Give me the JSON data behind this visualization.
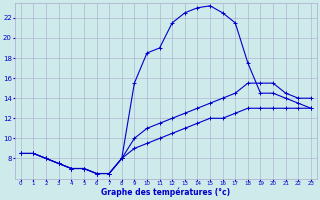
{
  "xlabel": "Graphe des températures (°c)",
  "bg_color": "#ceeaea",
  "grid_color": "#aaaacc",
  "line_color": "#0000cc",
  "xlim": [
    -0.5,
    23.5
  ],
  "ylim": [
    6,
    23.5
  ],
  "xticks": [
    0,
    1,
    2,
    3,
    4,
    5,
    6,
    7,
    8,
    9,
    10,
    11,
    12,
    13,
    14,
    15,
    16,
    17,
    18,
    19,
    20,
    21,
    22,
    23
  ],
  "yticks": [
    8,
    10,
    12,
    14,
    16,
    18,
    20,
    22
  ],
  "ytick_labels": [
    "8",
    "10",
    "12",
    "14",
    "16",
    "18",
    "20",
    "22"
  ],
  "curve1_x": [
    0,
    1,
    2,
    3,
    4,
    5,
    6,
    7,
    8,
    9,
    10,
    11,
    12,
    13,
    14,
    15,
    16,
    17,
    18,
    19,
    20,
    21,
    22,
    23
  ],
  "curve1_y": [
    8.5,
    8.5,
    8.0,
    7.5,
    7.0,
    7.0,
    6.5,
    6.5,
    8.0,
    15.5,
    18.5,
    19.0,
    21.5,
    22.5,
    23.0,
    23.2,
    22.5,
    21.5,
    17.5,
    14.5,
    14.5,
    14.0,
    13.5,
    13.0
  ],
  "curve2_x": [
    0,
    1,
    2,
    3,
    4,
    5,
    6,
    7,
    8,
    9,
    10,
    11,
    12,
    13,
    14,
    15,
    16,
    17,
    18,
    19,
    20,
    21,
    22,
    23
  ],
  "curve2_y": [
    8.5,
    8.5,
    8.0,
    7.5,
    7.0,
    7.0,
    6.5,
    6.5,
    8.0,
    10.0,
    11.0,
    11.5,
    12.0,
    12.5,
    13.0,
    13.5,
    14.0,
    14.5,
    15.5,
    15.5,
    15.5,
    14.5,
    14.0,
    14.0
  ],
  "curve3_x": [
    0,
    1,
    2,
    3,
    4,
    5,
    6,
    7,
    8,
    9,
    10,
    11,
    12,
    13,
    14,
    15,
    16,
    17,
    18,
    19,
    20,
    21,
    22,
    23
  ],
  "curve3_y": [
    8.5,
    8.5,
    8.0,
    7.5,
    7.0,
    7.0,
    6.5,
    6.5,
    8.0,
    9.0,
    9.5,
    10.0,
    10.5,
    11.0,
    11.5,
    12.0,
    12.0,
    12.5,
    13.0,
    13.0,
    13.0,
    13.0,
    13.0,
    13.0
  ]
}
